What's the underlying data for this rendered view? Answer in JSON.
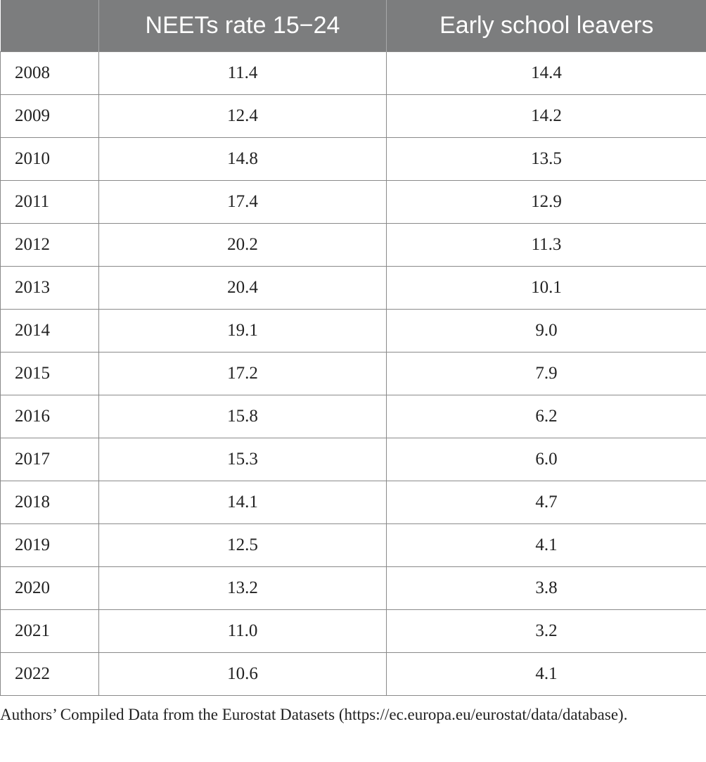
{
  "table": {
    "headers": [
      "",
      "NEETs rate 15−24",
      "Early school leavers"
    ],
    "rows": [
      [
        "2008",
        "11.4",
        "14.4"
      ],
      [
        "2009",
        "12.4",
        "14.2"
      ],
      [
        "2010",
        "14.8",
        "13.5"
      ],
      [
        "2011",
        "17.4",
        "12.9"
      ],
      [
        "2012",
        "20.2",
        "11.3"
      ],
      [
        "2013",
        "20.4",
        "10.1"
      ],
      [
        "2014",
        "19.1",
        "9.0"
      ],
      [
        "2015",
        "17.2",
        "7.9"
      ],
      [
        "2016",
        "15.8",
        "6.2"
      ],
      [
        "2017",
        "15.3",
        "6.0"
      ],
      [
        "2018",
        "14.1",
        "4.7"
      ],
      [
        "2019",
        "12.5",
        "4.1"
      ],
      [
        "2020",
        "13.2",
        "3.8"
      ],
      [
        "2021",
        "11.0",
        "3.2"
      ],
      [
        "2022",
        "10.6",
        "4.1"
      ]
    ]
  },
  "note": "Authors’ Compiled Data from the Eurostat Datasets (https://ec.europa.eu/eurostat/data/database).",
  "colors": {
    "header_bg": "#7c7d7e",
    "header_text": "#ffffff",
    "grid": "#8a8a8a"
  }
}
